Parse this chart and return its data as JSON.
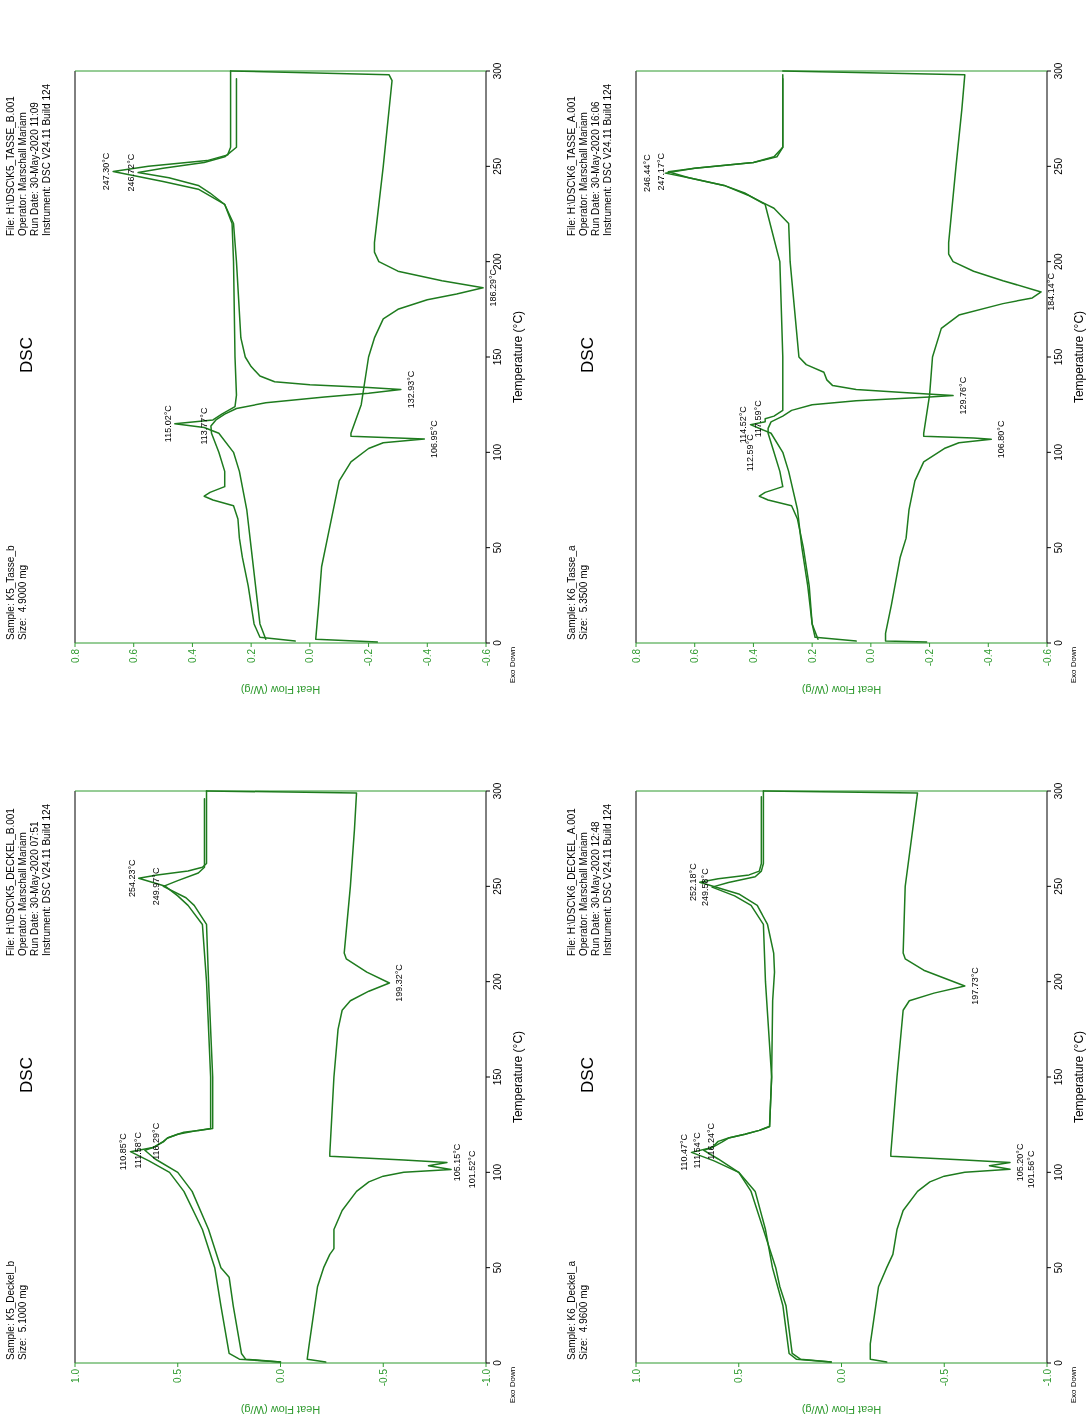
{
  "chart_data": [
    {
      "type": "line",
      "title": "DSC",
      "xlabel": "Heat Flow (W/g)",
      "ylabel": "Temperature (°C)",
      "ylim": [
        0,
        300
      ],
      "yticks": [
        0,
        50,
        100,
        150,
        200,
        250,
        300
      ],
      "xlim": [
        0.8,
        -0.6
      ],
      "xticks": [
        0.8,
        0.6,
        0.4,
        0.2,
        {
          "value": 0,
          "label": "0.0"
        },
        -0.2,
        -0.4,
        -0.6
      ],
      "series": [
        {
          "color": "#1e7b1e",
          "values": [
            1,
            3,
            10,
            30,
            45,
            55,
            65,
            72,
            75,
            77,
            79,
            82,
            90,
            100,
            110,
            113.77,
            117,
            120,
            123,
            126,
            129,
            131,
            132.93,
            134,
            135.5,
            137,
            140,
            145,
            150,
            160,
            200,
            220,
            230,
            236,
            240,
            244,
            246.72,
            249,
            252,
            255,
            260,
            296
          ],
          "x": [
            0.05,
            0.17,
            0.19,
            0.21,
            0.23,
            0.24,
            0.245,
            0.26,
            0.33,
            0.36,
            0.34,
            0.29,
            0.29,
            0.31,
            0.335,
            0.337,
            0.32,
            0.29,
            0.25,
            0.15,
            -0.05,
            -0.2,
            -0.31,
            -0.2,
            0,
            0.12,
            0.17,
            0.2,
            0.22,
            0.235,
            0.25,
            0.26,
            0.29,
            0.34,
            0.38,
            0.48,
            0.585,
            0.5,
            0.36,
            0.29,
            0.25,
            0.25
          ]
        },
        {
          "color": "#1e7b1e",
          "values": [
            2,
            10,
            30,
            50,
            70,
            90,
            100,
            110,
            113,
            115.02,
            117,
            120,
            124,
            130,
            150,
            200,
            220,
            230,
            238,
            242,
            247.3,
            250,
            253,
            256,
            260,
            300
          ],
          "x": [
            0.15,
            0.17,
            0.185,
            0.2,
            0.215,
            0.24,
            0.26,
            0.31,
            0.36,
            0.46,
            0.33,
            0.3,
            0.255,
            0.25,
            0.255,
            0.26,
            0.265,
            0.29,
            0.38,
            0.5,
            0.67,
            0.55,
            0.35,
            0.28,
            0.27,
            0.27
          ]
        },
        {
          "color": "#1e7b1e",
          "values": [
            300,
            298,
            295,
            250,
            210,
            205,
            200,
            195,
            190,
            186.29,
            183,
            180,
            175,
            170,
            160,
            150,
            125,
            110,
            108.5,
            107.5,
            106.95,
            105,
            102,
            95,
            85,
            70,
            55,
            40,
            20,
            2,
            0.5
          ],
          "x": [
            0.27,
            -0.27,
            -0.28,
            -0.25,
            -0.22,
            -0.22,
            -0.235,
            -0.3,
            -0.45,
            -0.59,
            -0.5,
            -0.4,
            -0.3,
            -0.25,
            -0.22,
            -0.2,
            -0.175,
            -0.14,
            -0.14,
            -0.3,
            -0.39,
            -0.25,
            -0.2,
            -0.14,
            -0.1,
            -0.08,
            -0.06,
            -0.04,
            -0.03,
            -0.02,
            -0.23
          ]
        }
      ],
      "annotations": [
        "Sample: K5_Tasse_b",
        "Size:  4.9000 mg",
        "File: H:\\DSC\\K5_TASSE_B.001",
        "Operator: Marschall Mariam",
        "Run Date: 30-May-2020 11:09",
        "Instrument: DSC V24.11 Build 124",
        "Exo Down",
        {
          "text": "247.30°C",
          "y": 247.3,
          "x": 0.67
        },
        {
          "text": "246.72°C",
          "y": 246.72,
          "x": 0.585
        },
        {
          "text": "115.02°C",
          "y": 115.02,
          "x": 0.46
        },
        {
          "text": "113.77°C",
          "y": 113.77,
          "x": 0.337
        },
        {
          "text": "132.93°C",
          "y": 132.93,
          "x": -0.31
        },
        {
          "text": "106.95°C",
          "y": 106.95,
          "x": -0.39
        },
        {
          "text": "186.29°C",
          "y": 186.29,
          "x": -0.59
        }
      ]
    },
    {
      "type": "line",
      "title": "DSC",
      "xlabel": "Heat Flow (W/g)",
      "ylabel": "Temperature (°C)",
      "ylim": [
        0,
        300
      ],
      "yticks": [
        0,
        50,
        100,
        150,
        200,
        250,
        300
      ],
      "xlim": [
        0.8,
        -0.6
      ],
      "xticks": [
        0.8,
        0.6,
        0.4,
        0.2,
        {
          "value": 0,
          "label": "0.0"
        },
        -0.2,
        -0.4,
        -0.6
      ],
      "series": [
        {
          "color": "#1e7b1e",
          "values": [
            1,
            3,
            10,
            30,
            50,
            65,
            72,
            75,
            77,
            79,
            82,
            90,
            100,
            110,
            112.59,
            116,
            119,
            122,
            125,
            127,
            129,
            129.76,
            131,
            133,
            135,
            138,
            142,
            146,
            150,
            200,
            220,
            228,
            235,
            240,
            244,
            247.17,
            249,
            252,
            255,
            260,
            298
          ],
          "x": [
            0.05,
            0.19,
            0.2,
            0.21,
            0.23,
            0.25,
            0.27,
            0.35,
            0.38,
            0.36,
            0.3,
            0.31,
            0.33,
            0.35,
            0.35,
            0.34,
            0.3,
            0.27,
            0.2,
            0.05,
            -0.2,
            -0.28,
            -0.15,
            0.05,
            0.13,
            0.15,
            0.16,
            0.22,
            0.245,
            0.275,
            0.28,
            0.33,
            0.42,
            0.5,
            0.62,
            0.69,
            0.6,
            0.4,
            0.33,
            0.3,
            0.3
          ]
        },
        {
          "color": "#1e7b1e",
          "values": [
            2,
            10,
            30,
            50,
            70,
            90,
            100,
            110,
            114.52,
            116,
            117.59,
            119,
            122,
            125,
            150,
            200,
            230,
            236,
            240,
            244,
            246.44,
            249,
            252,
            255,
            260,
            296
          ],
          "x": [
            0.18,
            0.2,
            0.215,
            0.235,
            0.25,
            0.28,
            0.3,
            0.34,
            0.41,
            0.36,
            0.36,
            0.33,
            0.3,
            0.3,
            0.3,
            0.31,
            0.36,
            0.43,
            0.5,
            0.62,
            0.7,
            0.6,
            0.4,
            0.32,
            0.3,
            0.3
          ]
        },
        {
          "color": "#1e7b1e",
          "values": [
            300,
            298,
            280,
            250,
            210,
            204,
            200,
            195,
            190,
            184.14,
            181,
            178,
            172,
            165,
            150,
            130,
            110,
            108.5,
            107.5,
            106.8,
            105,
            102,
            95,
            85,
            70,
            55,
            45,
            20,
            5,
            1,
            0.5
          ],
          "x": [
            0.3,
            -0.32,
            -0.31,
            -0.29,
            -0.265,
            -0.265,
            -0.28,
            -0.35,
            -0.45,
            -0.58,
            -0.55,
            -0.45,
            -0.3,
            -0.24,
            -0.21,
            -0.2,
            -0.18,
            -0.18,
            -0.35,
            -0.41,
            -0.3,
            -0.25,
            -0.18,
            -0.15,
            -0.13,
            -0.12,
            -0.1,
            -0.07,
            -0.05,
            -0.05,
            -0.19
          ]
        }
      ],
      "annotations": [
        "Sample: K6_Tasse_a",
        "Size:  5.3500 mg",
        "File: H:\\DSC\\K6_TASSE_A.001",
        "Operator: Marschall Mariam",
        "Run Date: 30-May-2020 16:06",
        "Instrument: DSC V24.11 Build 124",
        "Exo Down",
        {
          "text": "247.17°C",
          "y": 247.17,
          "x": 0.69
        },
        {
          "text": "246.44°C",
          "y": 246.44,
          "x": 0.7
        },
        {
          "text": "114.52°C",
          "y": 114.52,
          "x": 0.41
        },
        {
          "text": "117.59°C",
          "y": 117.59,
          "x": 0.36
        },
        {
          "text": "112.59°C",
          "y": 112.59,
          "x": 0.35
        },
        {
          "text": "129.76°C",
          "y": 129.76,
          "x": -0.28
        },
        {
          "text": "106.80°C",
          "y": 106.8,
          "x": -0.41
        },
        {
          "text": "184.14°C",
          "y": 184.14,
          "x": -0.58
        }
      ]
    },
    {
      "type": "line",
      "title": "DSC",
      "xlabel": "Heat Flow (W/g)",
      "ylabel": "Temperature (°C)",
      "ylim": [
        0,
        300
      ],
      "yticks": [
        0,
        50,
        100,
        150,
        200,
        250,
        300
      ],
      "xlim": [
        1,
        -1
      ],
      "xticks": [
        {
          "value": 1,
          "label": "1.0"
        },
        0.5,
        {
          "value": 0,
          "label": "0.0"
        },
        -0.5,
        {
          "value": -1,
          "label": "-1.0"
        }
      ],
      "series": [
        {
          "color": "#1e7b1e",
          "values": [
            0.5,
            2,
            5,
            30,
            50,
            70,
            90,
            100,
            106,
            110.85,
            113,
            116,
            118,
            120,
            122,
            123,
            150,
            200,
            230,
            240,
            245,
            250,
            254.23,
            256,
            258,
            260,
            262,
            300
          ],
          "x": [
            0,
            0.2,
            0.25,
            0.29,
            0.32,
            0.38,
            0.47,
            0.54,
            0.64,
            0.73,
            0.62,
            0.57,
            0.55,
            0.5,
            0.4,
            0.34,
            0.34,
            0.36,
            0.38,
            0.45,
            0.5,
            0.56,
            0.69,
            0.6,
            0.45,
            0.38,
            0.36,
            0.36
          ]
        },
        {
          "color": "#1e7b1e",
          "values": [
            0.5,
            2,
            5,
            30,
            45,
            50,
            70,
            90,
            100,
            107,
            111.58,
            113,
            116.29,
            118,
            120,
            121,
            122,
            123,
            150,
            200,
            230,
            240,
            244,
            249.97,
            253,
            257,
            260,
            296
          ],
          "x": [
            0,
            0.17,
            0.19,
            0.23,
            0.25,
            0.29,
            0.35,
            0.43,
            0.5,
            0.61,
            0.66,
            0.62,
            0.57,
            0.55,
            0.5,
            0.47,
            0.4,
            0.33,
            0.33,
            0.35,
            0.36,
            0.42,
            0.46,
            0.57,
            0.5,
            0.4,
            0.37,
            0.37
          ]
        },
        {
          "color": "#1e7b1e",
          "values": [
            300,
            299,
            280,
            250,
            215,
            212,
            205,
            199.32,
            195,
            190,
            185,
            175,
            150,
            130,
            110,
            108.5,
            106.5,
            105.15,
            103.5,
            101.52,
            100,
            98,
            95,
            90,
            80,
            70,
            60,
            57,
            50,
            40,
            25,
            10,
            2,
            0.5
          ],
          "x": [
            0.36,
            -0.37,
            -0.36,
            -0.34,
            -0.31,
            -0.32,
            -0.42,
            -0.53,
            -0.43,
            -0.34,
            -0.3,
            -0.28,
            -0.26,
            -0.25,
            -0.24,
            -0.24,
            -0.6,
            -0.81,
            -0.72,
            -0.83,
            -0.6,
            -0.5,
            -0.43,
            -0.37,
            -0.3,
            -0.26,
            -0.26,
            -0.24,
            -0.21,
            -0.18,
            -0.16,
            -0.14,
            -0.13,
            -0.22
          ]
        }
      ],
      "annotations": [
        "Sample: K5_Deckel_b",
        "Size:  5.1000 mg",
        "File: H:\\DSC\\K5_DECKEL_B.001",
        "Operator: Marschall Mariam",
        "Run Date: 30-May-2020 07:51",
        "Instrument: DSC V24.11 Build 124",
        "Exo Down",
        {
          "text": "254.23°C",
          "y": 254.23,
          "x": 0.69
        },
        {
          "text": "249.97°C",
          "y": 249.97,
          "x": 0.57
        },
        {
          "text": "110.85°C",
          "y": 110.85,
          "x": 0.73
        },
        {
          "text": "111.58°C",
          "y": 111.58,
          "x": 0.66
        },
        {
          "text": "116.29°C",
          "y": 116.29,
          "x": 0.57
        },
        {
          "text": "199.32°C",
          "y": 199.32,
          "x": -0.53
        },
        {
          "text": "105.15°C",
          "y": 105.15,
          "x": -0.81
        },
        {
          "text": "101.52°C",
          "y": 101.52,
          "x": -0.83
        }
      ]
    },
    {
      "type": "line",
      "title": "DSC",
      "xlabel": "Heat Flow (W/g)",
      "ylabel": "Temperature (°C)",
      "ylim": [
        0,
        300
      ],
      "yticks": [
        0,
        50,
        100,
        150,
        200,
        250,
        300
      ],
      "xlim": [
        1,
        -1
      ],
      "xticks": [
        {
          "value": 1,
          "label": "1.0"
        },
        0.5,
        {
          "value": 0,
          "label": "0.0"
        },
        -0.5,
        {
          "value": -1,
          "label": "-1.0"
        }
      ],
      "series": [
        {
          "color": "#1e7b1e",
          "values": [
            0.5,
            2,
            5,
            30,
            50,
            70,
            90,
            100,
            106,
            110.47,
            113,
            116,
            118,
            120,
            122,
            124,
            150,
            190,
            205,
            215,
            230,
            240,
            246,
            252.18,
            254,
            256,
            258,
            262,
            297
          ],
          "x": [
            0.05,
            0.22,
            0.255,
            0.285,
            0.336,
            0.37,
            0.42,
            0.5,
            0.62,
            0.73,
            0.63,
            0.58,
            0.55,
            0.47,
            0.4,
            0.35,
            0.34,
            0.335,
            0.326,
            0.33,
            0.36,
            0.41,
            0.5,
            0.69,
            0.6,
            0.45,
            0.4,
            0.39,
            0.39
          ]
        },
        {
          "color": "#1e7b1e",
          "values": [
            0.5,
            2,
            5,
            30,
            40,
            50,
            70,
            90,
            100,
            107,
            111.54,
            113,
            116.24,
            118,
            120,
            122,
            124,
            150,
            200,
            230,
            240,
            245,
            249.58,
            252,
            255,
            258,
            262,
            300
          ],
          "x": [
            0.05,
            0.2,
            0.24,
            0.27,
            0.3,
            0.32,
            0.38,
            0.44,
            0.5,
            0.6,
            0.67,
            0.63,
            0.6,
            0.55,
            0.47,
            0.4,
            0.35,
            0.34,
            0.37,
            0.38,
            0.44,
            0.52,
            0.63,
            0.55,
            0.42,
            0.39,
            0.38,
            0.38
          ]
        },
        {
          "color": "#1e7b1e",
          "values": [
            300,
            299,
            250,
            215,
            212,
            206,
            197.73,
            194,
            190,
            185,
            150,
            110,
            108.5,
            106.5,
            105.2,
            103.5,
            101.56,
            100,
            98,
            95,
            90,
            80,
            70,
            57,
            50,
            40,
            25,
            10,
            2,
            0.5
          ],
          "x": [
            0.38,
            -0.37,
            -0.31,
            -0.3,
            -0.31,
            -0.4,
            -0.6,
            -0.45,
            -0.33,
            -0.3,
            -0.27,
            -0.24,
            -0.24,
            -0.6,
            -0.82,
            -0.72,
            -0.82,
            -0.6,
            -0.5,
            -0.43,
            -0.37,
            -0.3,
            -0.27,
            -0.25,
            -0.22,
            -0.18,
            -0.16,
            -0.14,
            -0.14,
            -0.22
          ]
        }
      ],
      "annotations": [
        "Sample: K6_Deckel_a",
        "Size:  4.9600 mg",
        "File: H:\\DSC\\K6_DECKEL_A.001",
        "Operator: Marschall Mariam",
        "Run Date: 30-May-2020 12:48",
        "Instrument: DSC V24.11 Build 124",
        "Exo Down",
        {
          "text": "252.18°C",
          "y": 252.18,
          "x": 0.69
        },
        {
          "text": "249.58°C",
          "y": 249.58,
          "x": 0.63
        },
        {
          "text": "110.47°C",
          "y": 110.47,
          "x": 0.73
        },
        {
          "text": "111.54°C",
          "y": 111.54,
          "x": 0.67
        },
        {
          "text": "116.24°C",
          "y": 116.24,
          "x": 0.6
        },
        {
          "text": "197.73°C",
          "y": 197.73,
          "x": -0.6
        },
        {
          "text": "105.20°C",
          "y": 105.2,
          "x": -0.82
        },
        {
          "text": "101.56°C",
          "y": 101.56,
          "x": -0.82
        }
      ]
    }
  ]
}
